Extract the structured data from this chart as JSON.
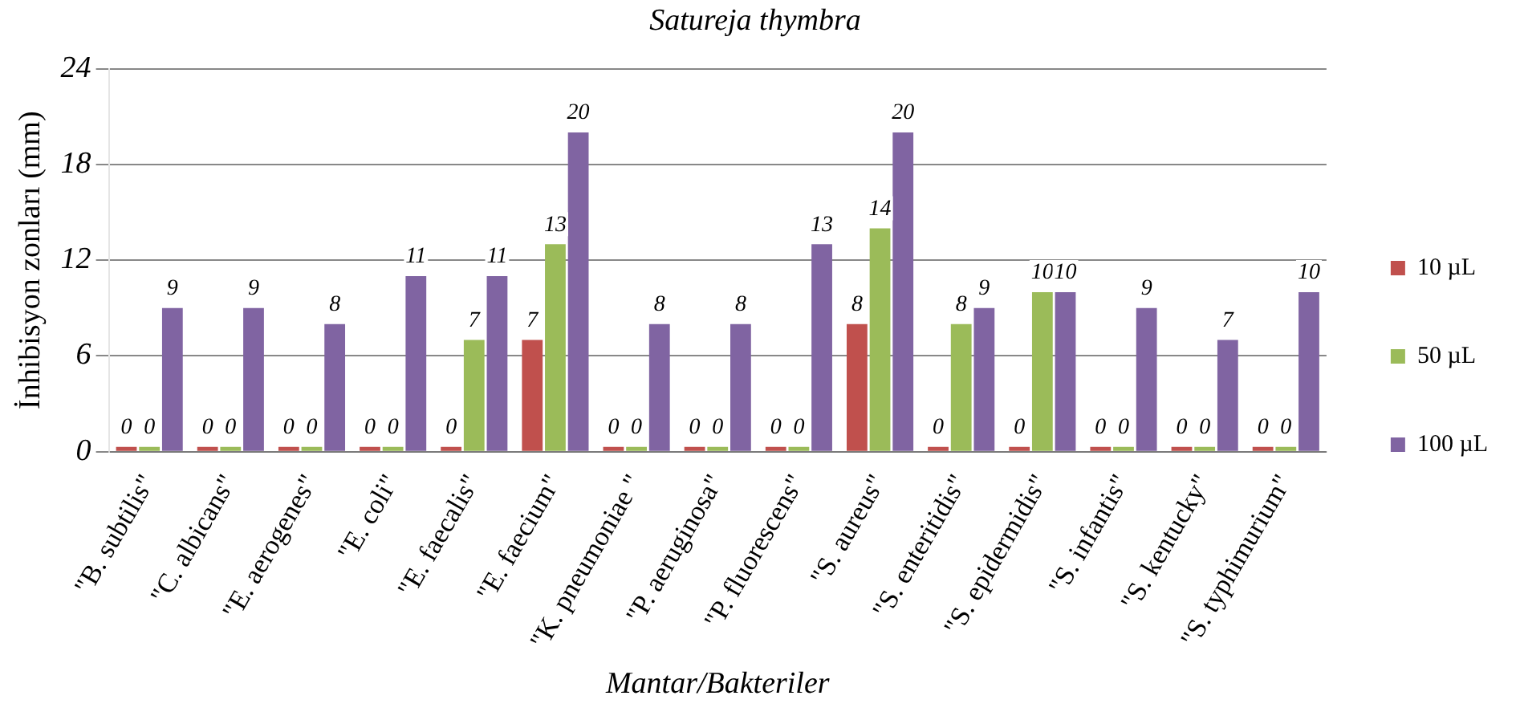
{
  "chart_data": {
    "type": "bar",
    "title": "Satureja thymbra",
    "xlabel": "Mantar/Bakteriler",
    "ylabel": "İnhibisyon zonları (mm)",
    "categories": [
      "\"B. subtilis\"",
      "\"C. albicans\"",
      "\"E. aerogenes\"",
      "\"E. coli\"",
      "\"E. faecalis\"",
      "\"E. faecium\"",
      "\"K. pneumoniae \"",
      "\"P. aeruginosa\"",
      "\"P. fluorescens\"",
      "\"S. aureus\"",
      "\"S. enteritidis\"",
      "\"S. epidermidis\"",
      "\"S. infantis\"",
      "\"S. kentucky\"",
      "\"S. typhimurium\""
    ],
    "series": [
      {
        "name": "10 µL",
        "color": "#c0504d",
        "values": [
          0,
          0,
          0,
          0,
          0,
          7,
          0,
          0,
          0,
          8,
          0,
          0,
          0,
          0,
          0
        ]
      },
      {
        "name": "50 µL",
        "color": "#9bbb59",
        "values": [
          0,
          0,
          0,
          0,
          7,
          13,
          0,
          0,
          0,
          14,
          8,
          10,
          0,
          0,
          0
        ]
      },
      {
        "name": "100 µL",
        "color": "#8064a2",
        "values": [
          9,
          9,
          8,
          11,
          11,
          20,
          8,
          8,
          13,
          20,
          9,
          10,
          9,
          7,
          10
        ]
      }
    ],
    "ylim": [
      0,
      24
    ],
    "yticks": [
      0,
      6,
      12,
      18,
      24
    ],
    "grid": "y",
    "legend": "right",
    "data_labels": true
  }
}
